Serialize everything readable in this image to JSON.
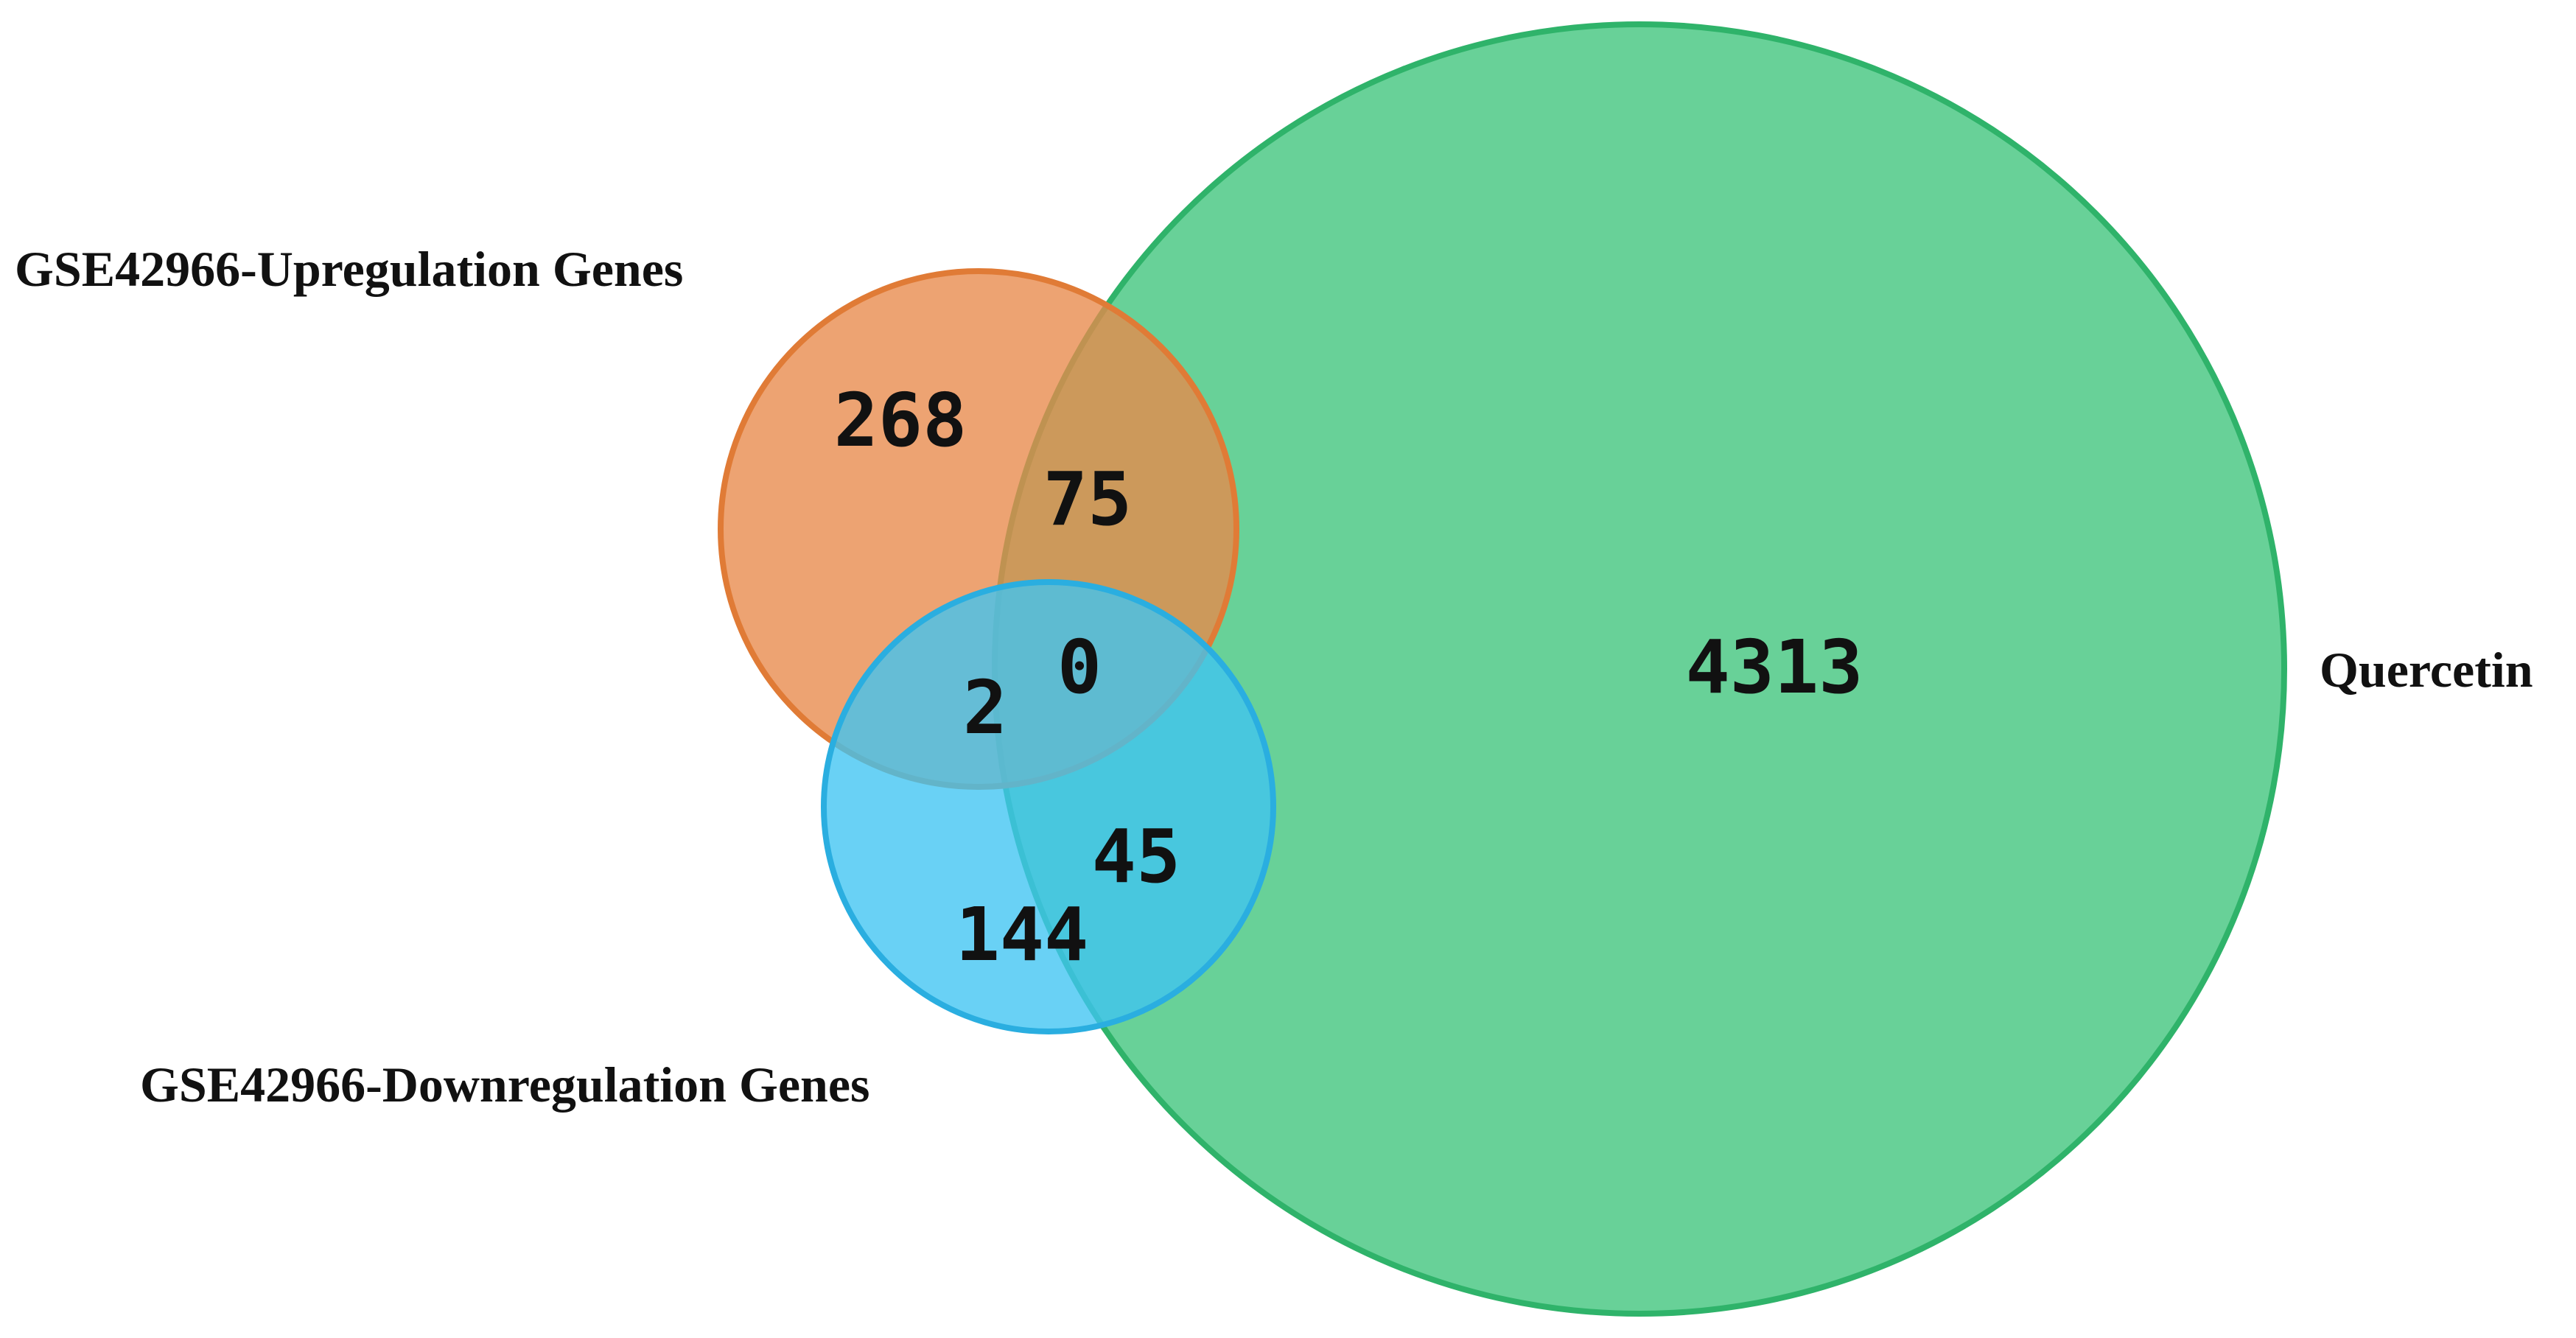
{
  "sets": [
    {
      "id": "up",
      "label": "GSE42966-Upregulation Genes",
      "fill": "#e8894a",
      "stroke": "#e07b36"
    },
    {
      "id": "down",
      "label": "GSE42966-Downregulation Genes",
      "fill": "#3fc4f2",
      "stroke": "#2aaee0"
    },
    {
      "id": "quercetin",
      "label": "Quercetin",
      "fill": "#3ec47b",
      "stroke": "#2fb36a"
    }
  ],
  "regions": {
    "up_only": "268",
    "up_quercetin": "75",
    "up_down_quercetin": "0",
    "up_down": "2",
    "down_quercetin": "45",
    "down_only": "144",
    "quercetin_only": "4313"
  }
}
